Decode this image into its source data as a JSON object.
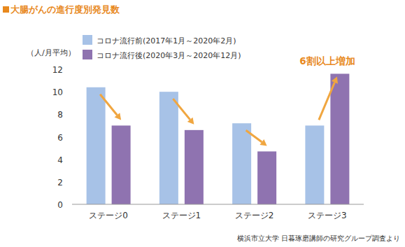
{
  "chart_data": {
    "type": "bar",
    "title": "大腸がんの進行度別発見数",
    "y_label": "（人/月平均）",
    "annotation": "6割以上増加",
    "source": "横浜市立大学 日暮琢磨講師の研究グループ調査より",
    "categories": [
      "ステージ0",
      "ステージ1",
      "ステージ2",
      "ステージ3"
    ],
    "series": [
      {
        "name": "コロナ流行前(2017年1月～2020年2月)",
        "color": "#a7c2e7",
        "values": [
          10.4,
          10.0,
          7.2,
          7.0
        ]
      },
      {
        "name": "コロナ流行後(2020年3月～2020年12月)",
        "color": "#8f73b0",
        "values": [
          7.0,
          6.6,
          4.7,
          11.6
        ]
      }
    ],
    "ylim": [
      0,
      12
    ],
    "yticks": [
      0,
      2,
      4,
      6,
      8,
      10,
      12
    ],
    "grid": false,
    "legend": "top-left"
  }
}
